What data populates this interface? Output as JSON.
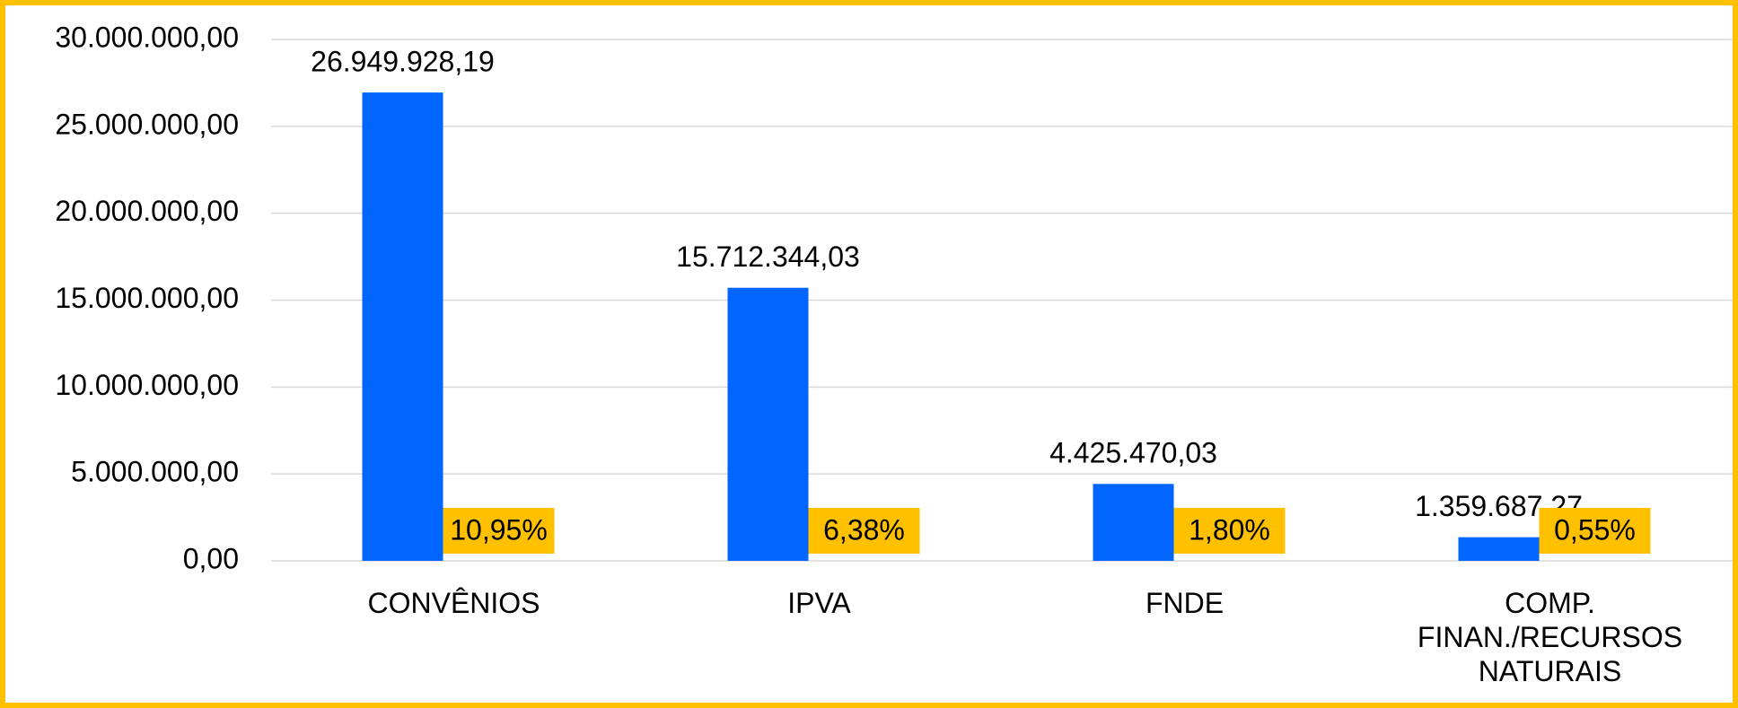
{
  "chart_data": {
    "type": "bar",
    "categories": [
      "CONVÊNIOS",
      "IPVA",
      "FNDE",
      "COMP. FINAN./RECURSOS NATURAIS"
    ],
    "values": [
      26949928.19,
      15712344.03,
      4425470.03,
      1359687.27
    ],
    "value_labels": [
      "26.949.928,19",
      "15.712.344,03",
      "4.425.470,03",
      "1.359.687,27"
    ],
    "annotations": [
      "10,95%",
      "6,38%",
      "1,80%",
      "0,55%"
    ],
    "color": "#0066FF",
    "annotation_color": "#FFC000",
    "ylim": [
      0,
      30000000
    ],
    "yticks": [
      {
        "value": 0,
        "label": "0,00"
      },
      {
        "value": 5000000,
        "label": "5.000.000,00"
      },
      {
        "value": 10000000,
        "label": "10.000.000,00"
      },
      {
        "value": 15000000,
        "label": "15.000.000,00"
      },
      {
        "value": 20000000,
        "label": "20.000.000,00"
      },
      {
        "value": 25000000,
        "label": "25.000.000,00"
      },
      {
        "value": 30000000,
        "label": "30.000.000,00"
      }
    ],
    "grid": true
  }
}
